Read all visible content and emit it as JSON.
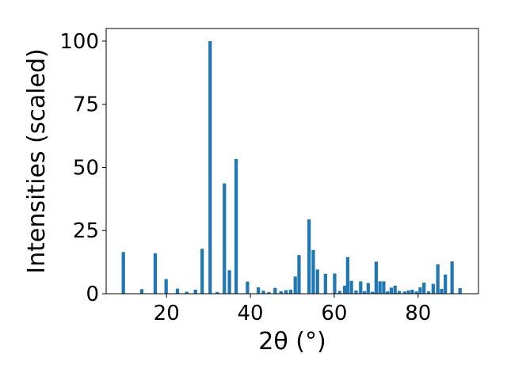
{
  "chart_data": {
    "type": "bar",
    "xlabel": "2θ (°)",
    "ylabel": "Intensities (scaled)",
    "xlim": [
      5.6,
      94.4
    ],
    "ylim": [
      0,
      105
    ],
    "xticks": [
      20,
      40,
      60,
      80
    ],
    "yticks": [
      0,
      25,
      50,
      75,
      100
    ],
    "bar_width": 0.8,
    "grid": false,
    "color": "#1f77b4",
    "x": [
      9.7,
      14.1,
      17.3,
      19.9,
      22.6,
      24.8,
      26.9,
      28.5,
      30.4,
      32.1,
      33.8,
      35.0,
      36.6,
      39.3,
      41.9,
      43.1,
      44.4,
      45.9,
      47.3,
      48.5,
      49.6,
      50.7,
      51.6,
      54.0,
      55.0,
      56.0,
      57.9,
      60.1,
      61.3,
      62.5,
      63.2,
      64.1,
      65.2,
      66.3,
      67.2,
      68.1,
      69.1,
      70.0,
      70.9,
      71.8,
      72.7,
      73.6,
      74.5,
      75.5,
      76.8,
      77.7,
      78.6,
      79.6,
      80.5,
      81.4,
      82.5,
      83.6,
      84.7,
      85.6,
      86.5,
      88.1,
      90.0
    ],
    "values": [
      16.5,
      1.8,
      16.0,
      5.8,
      2.0,
      0.8,
      1.6,
      17.8,
      100,
      0.7,
      43.7,
      9.3,
      53.3,
      4.8,
      2.5,
      1.2,
      0.6,
      2.3,
      1.0,
      1.4,
      1.6,
      6.8,
      15.3,
      29.4,
      17.3,
      9.6,
      7.9,
      8.0,
      1.1,
      3.2,
      14.5,
      5.1,
      1.3,
      4.9,
      1.0,
      4.2,
      0.8,
      12.7,
      4.9,
      4.9,
      0.9,
      2.4,
      3.2,
      1.1,
      0.9,
      1.3,
      1.6,
      0.9,
      2.5,
      4.4,
      0.9,
      3.9,
      11.6,
      1.9,
      7.6,
      12.8,
      2.2
    ]
  }
}
